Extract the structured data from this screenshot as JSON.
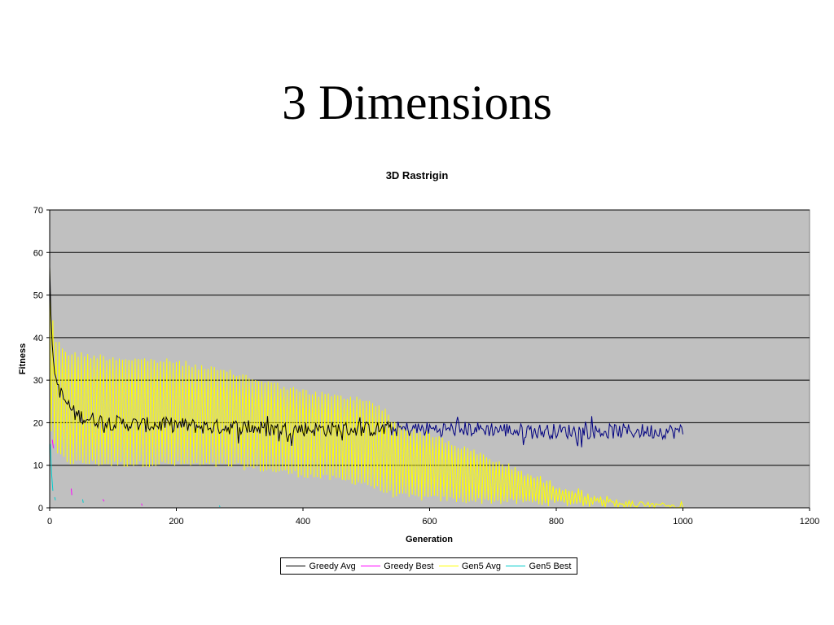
{
  "slide": {
    "title": "3 Dimensions"
  },
  "chart_data": {
    "type": "line",
    "title": "3D Rastrigin",
    "xlabel": "Generation",
    "ylabel": "Fitness",
    "xlim": [
      0,
      1200
    ],
    "ylim": [
      0,
      70
    ],
    "xticks": [
      0,
      200,
      400,
      600,
      800,
      1000,
      1200
    ],
    "yticks": [
      0,
      10,
      20,
      30,
      40,
      50,
      60,
      70
    ],
    "grid": "horizontal",
    "plot_background": "#c0c0c0",
    "legend_position": "bottom",
    "series": [
      {
        "name": "Greedy Avg",
        "color": "#000000",
        "color_after_gen540": "#000080",
        "x": [
          0,
          3,
          6,
          10,
          20,
          40,
          60,
          80,
          100,
          150,
          200,
          250,
          300,
          350,
          400,
          450,
          500,
          550,
          600,
          650,
          700,
          750,
          800,
          850,
          900,
          950,
          1000
        ],
        "y": [
          57,
          40,
          34,
          30,
          26,
          22,
          21,
          20.5,
          20,
          19.5,
          19.5,
          19,
          19,
          18.5,
          18.5,
          18.5,
          18.5,
          18.5,
          18.5,
          18.5,
          18.5,
          18,
          18,
          18,
          18,
          18,
          18
        ],
        "noise_amplitude": 1.8
      },
      {
        "name": "Greedy Best",
        "color": "#ff00ff",
        "segments": [
          {
            "x": [
              4,
              6
            ],
            "y": [
              16,
              14
            ]
          },
          {
            "x": [
              34,
              35
            ],
            "y": [
              4.5,
              3
            ]
          },
          {
            "x": [
              84,
              86
            ],
            "y": [
              2,
              1.5
            ]
          },
          {
            "x": [
              145,
              146
            ],
            "y": [
              1,
              0.5
            ]
          }
        ]
      },
      {
        "name": "Gen5 Avg",
        "color": "#ffff00",
        "period_gens": 5,
        "upper": {
          "x": [
            0,
            5,
            10,
            30,
            100,
            200,
            300,
            400,
            450,
            500,
            520,
            550,
            600,
            650,
            700,
            800,
            900,
            1000
          ],
          "y": [
            58,
            45,
            40,
            37,
            36,
            35,
            32,
            28,
            27,
            26,
            25,
            20,
            18,
            15,
            12,
            6,
            2,
            0.5
          ]
        },
        "lower": {
          "x": [
            0,
            5,
            10,
            30,
            100,
            200,
            300,
            400,
            450,
            500,
            520,
            550,
            600,
            650,
            700,
            800,
            900,
            1000
          ],
          "y": [
            20,
            15,
            12,
            10,
            9.5,
            9.5,
            9,
            7,
            6,
            5,
            3.5,
            2,
            1.5,
            1,
            0.8,
            0.3,
            0,
            0
          ]
        }
      },
      {
        "name": "Gen5 Best",
        "color": "#00cccc",
        "segments": [
          {
            "x": [
              1,
              3,
              5
            ],
            "y": [
              15,
              8,
              4
            ]
          },
          {
            "x": [
              8,
              9
            ],
            "y": [
              2.5,
              1.8
            ]
          },
          {
            "x": [
              52,
              53
            ],
            "y": [
              2,
              1.2
            ]
          },
          {
            "x": [
              268,
              269
            ],
            "y": [
              0.5,
              0.2
            ]
          }
        ]
      }
    ]
  }
}
